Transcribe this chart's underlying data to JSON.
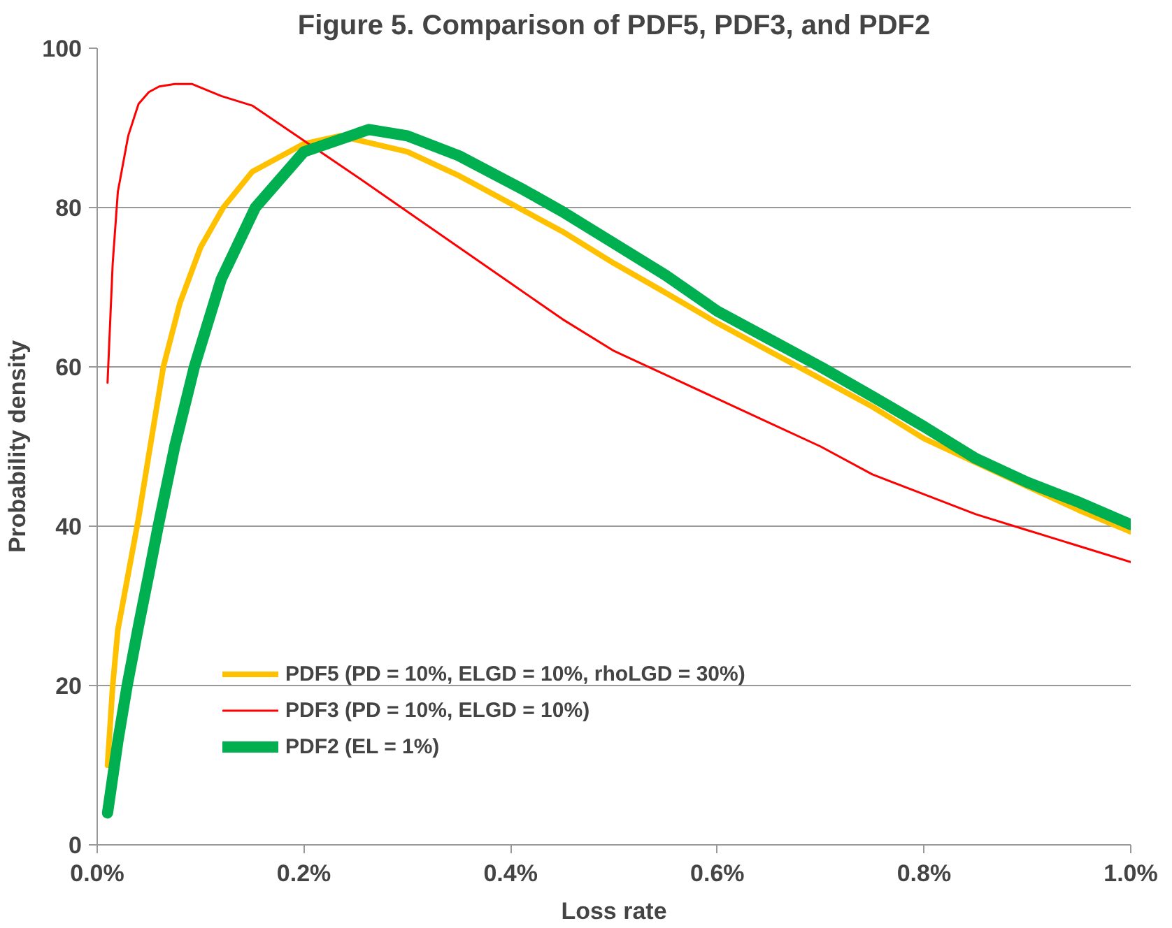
{
  "chart_data": {
    "type": "line",
    "title": "Figure 5. Comparison of PDF5, PDF3, and PDF2",
    "xlabel": "Loss rate",
    "ylabel": "Probability density",
    "xlim": [
      0,
      1.0
    ],
    "ylim": [
      0,
      100
    ],
    "xticks": [
      {
        "value": 0,
        "label": "0.0%"
      },
      {
        "value": 0.2,
        "label": "0.2%"
      },
      {
        "value": 0.4,
        "label": "0.4%"
      },
      {
        "value": 0.6,
        "label": "0.6%"
      },
      {
        "value": 0.8,
        "label": "0.8%"
      },
      {
        "value": 1.0,
        "label": "1.0%"
      }
    ],
    "yticks": [
      0,
      20,
      40,
      60,
      80,
      100
    ],
    "grid": "y",
    "legend": "bottom",
    "marker": "none",
    "line_style": "solid",
    "series": [
      {
        "name": "PDF5 (PD = 10%, ELGD = 10%, rhoLGD = 30%)",
        "color": "#ffc000",
        "x": [
          0.01,
          0.015,
          0.02,
          0.03,
          0.04,
          0.05,
          0.064,
          0.08,
          0.1,
          0.122,
          0.15,
          0.2,
          0.235,
          0.3,
          0.35,
          0.4,
          0.45,
          0.5,
          0.55,
          0.6,
          0.65,
          0.7,
          0.75,
          0.8,
          0.85,
          0.9,
          0.95,
          1.0
        ],
        "values": [
          10,
          20,
          27,
          34,
          41,
          49,
          60,
          68,
          75,
          80,
          84.5,
          88,
          89,
          87,
          84,
          80.5,
          77,
          73,
          69.3,
          65.5,
          62,
          58.5,
          55,
          51,
          48,
          45,
          42,
          39.3
        ]
      },
      {
        "name": "PDF3 (PD = 10%, ELGD = 10%)",
        "color": "#ff0000",
        "x": [
          0.01,
          0.015,
          0.02,
          0.03,
          0.04,
          0.05,
          0.06,
          0.075,
          0.092,
          0.12,
          0.15,
          0.2,
          0.25,
          0.3,
          0.35,
          0.4,
          0.45,
          0.5,
          0.55,
          0.6,
          0.65,
          0.7,
          0.75,
          0.8,
          0.85,
          0.9,
          0.95,
          1.0
        ],
        "values": [
          58,
          73,
          82,
          89,
          93,
          94.5,
          95.2,
          95.5,
          95.5,
          94,
          92.8,
          88.4,
          84,
          79.5,
          75,
          70.5,
          66,
          62,
          59,
          56,
          53,
          50,
          46.5,
          44,
          41.5,
          39.5,
          37.5,
          35.5
        ]
      },
      {
        "name": "PDF2 (EL = 1%)",
        "color": "#00b050",
        "x": [
          0.01,
          0.02,
          0.029,
          0.04,
          0.05,
          0.059,
          0.075,
          0.094,
          0.12,
          0.153,
          0.2,
          0.263,
          0.3,
          0.35,
          0.413,
          0.45,
          0.5,
          0.55,
          0.6,
          0.65,
          0.7,
          0.75,
          0.8,
          0.85,
          0.9,
          0.95,
          1.0
        ],
        "values": [
          4,
          13,
          20,
          27.5,
          34,
          40,
          50,
          60,
          71,
          80,
          87,
          89.8,
          89,
          86.5,
          82.2,
          79.5,
          75.5,
          71.5,
          67,
          63.5,
          60,
          56.3,
          52.5,
          48.5,
          45.5,
          43,
          40.2
        ]
      }
    ]
  }
}
